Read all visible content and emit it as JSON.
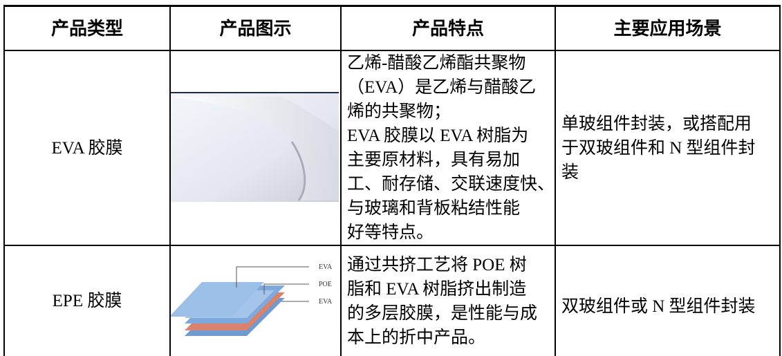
{
  "table": {
    "header": [
      "产品类型",
      "产品图示",
      "产品特点",
      "主要应用场景"
    ],
    "rows": [
      {
        "type": "EVA 胶膜",
        "features": [
          "乙烯-醋酸乙烯酯共聚物",
          "（EVA）是乙烯与醋酸乙",
          "烯的共聚物；",
          "EVA 胶膜以 EVA 树脂为",
          "主要原材料，具有易加",
          "工、耐存储、交联速度快、",
          "与玻璃和背板粘结性能",
          "好等特点。"
        ],
        "applications": [
          "单玻组件封装，或搭配用",
          "于双玻组件和 N 型组件封",
          "装"
        ]
      },
      {
        "type": "EPE 胶膜",
        "image_labels": [
          "EVA",
          "POE",
          "EVA"
        ],
        "features": [
          "通过共挤工艺将 POE 树",
          "脂和 EVA 树脂挤出制造",
          "的多层胶膜，是性能与成",
          "本上的折中产品。"
        ],
        "applications": [
          "双玻组件或 N 型组件封装"
        ]
      }
    ]
  }
}
